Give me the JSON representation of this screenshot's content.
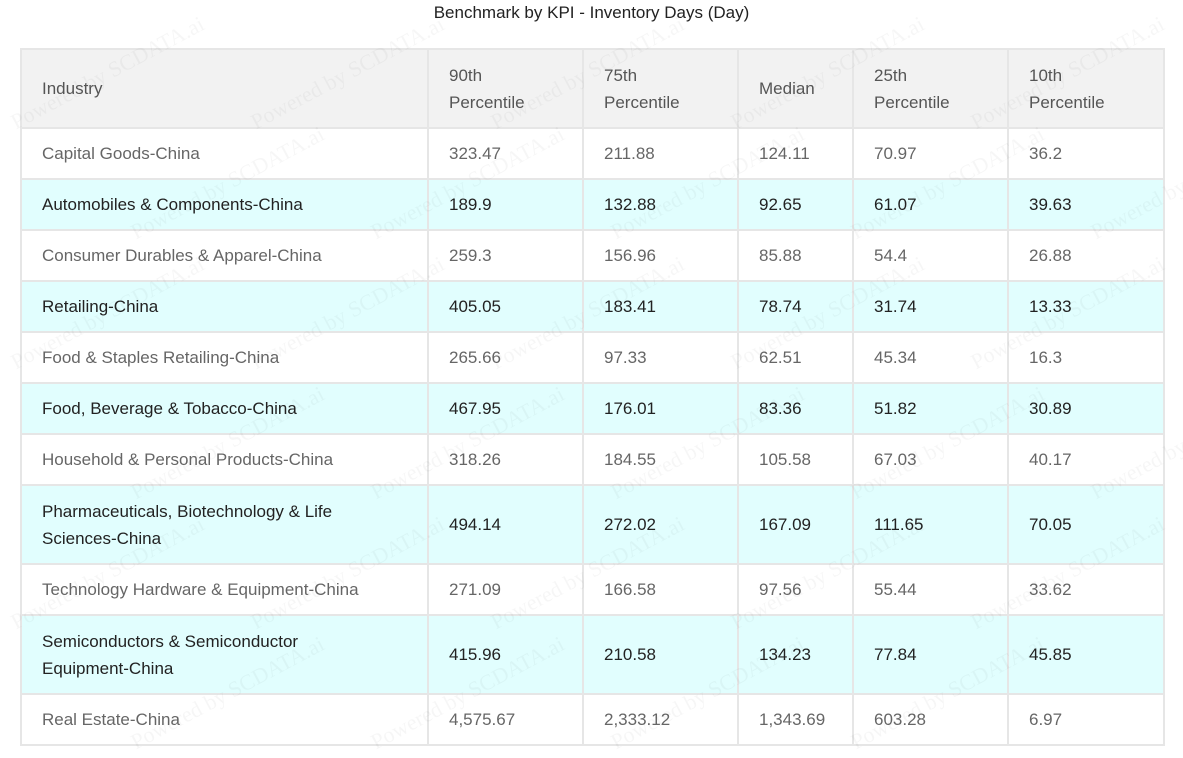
{
  "chart_data": {
    "type": "table",
    "title": "Benchmark by KPI - Inventory Days (Day)",
    "columns": [
      "Industry",
      "90th Percentile",
      "75th Percentile",
      "Median",
      "25th Percentile",
      "10th Percentile"
    ],
    "rows": [
      [
        "Capital Goods-China",
        "323.47",
        "211.88",
        "124.11",
        "70.97",
        "36.2"
      ],
      [
        "Automobiles & Components-China",
        "189.9",
        "132.88",
        "92.65",
        "61.07",
        "39.63"
      ],
      [
        "Consumer Durables & Apparel-China",
        "259.3",
        "156.96",
        "85.88",
        "54.4",
        "26.88"
      ],
      [
        "Retailing-China",
        "405.05",
        "183.41",
        "78.74",
        "31.74",
        "13.33"
      ],
      [
        "Food & Staples Retailing-China",
        "265.66",
        "97.33",
        "62.51",
        "45.34",
        "16.3"
      ],
      [
        "Food, Beverage & Tobacco-China",
        "467.95",
        "176.01",
        "83.36",
        "51.82",
        "30.89"
      ],
      [
        "Household & Personal Products-China",
        "318.26",
        "184.55",
        "105.58",
        "67.03",
        "40.17"
      ],
      [
        "Pharmaceuticals, Biotechnology & Life Sciences-China",
        "494.14",
        "272.02",
        "167.09",
        "111.65",
        "70.05"
      ],
      [
        "Technology Hardware & Equipment-China",
        "271.09",
        "166.58",
        "97.56",
        "55.44",
        "33.62"
      ],
      [
        "Semiconductors & Semiconductor Equipment-China",
        "415.96",
        "210.58",
        "134.23",
        "77.84",
        "45.85"
      ],
      [
        "Real Estate-China",
        "4,575.67",
        "2,333.12",
        "1,343.69",
        "603.28",
        "6.97"
      ]
    ]
  },
  "watermark_text": "Powered by SCDATA.ai",
  "colors": {
    "header_bg": "#f2f2f2",
    "row_alt_bg": "#e1fefe",
    "row_bg": "#ffffff",
    "border": "#e6e6e6"
  }
}
